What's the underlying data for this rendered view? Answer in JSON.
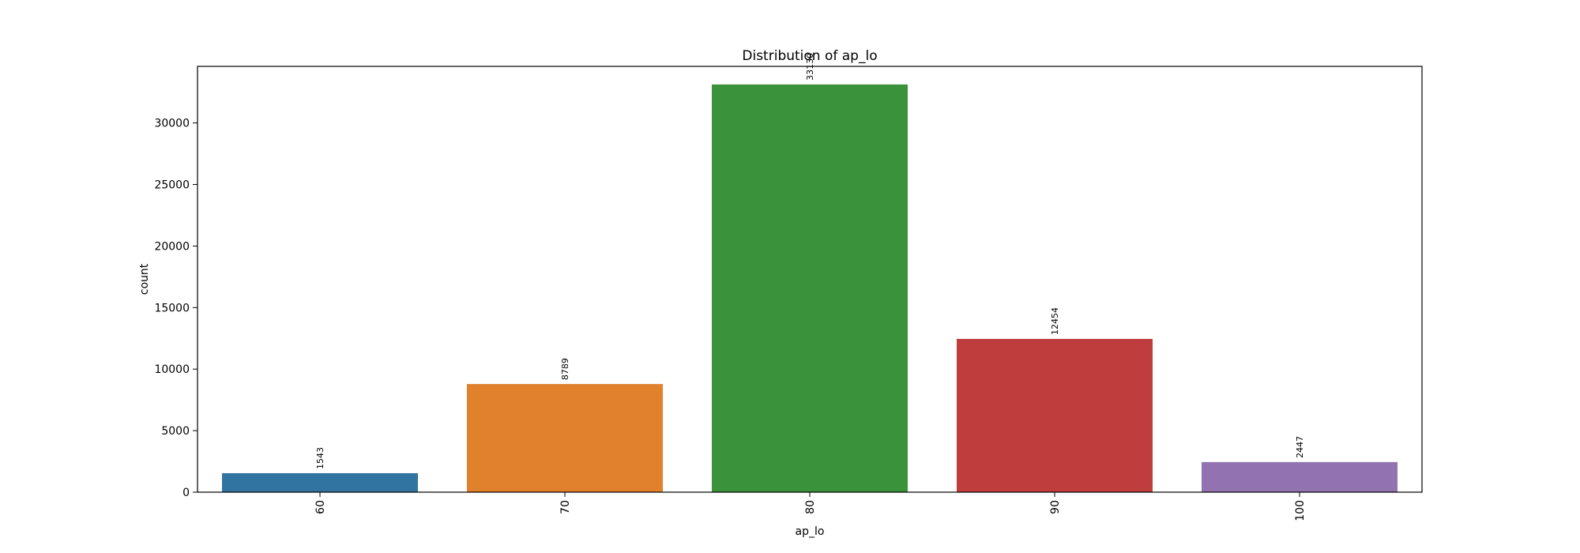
{
  "chart_data": {
    "type": "bar",
    "title": "Distribution of ap_lo",
    "xlabel": "ap_lo",
    "ylabel": "count",
    "categories": [
      "60",
      "70",
      "80",
      "90",
      "100"
    ],
    "values": [
      1543,
      8789,
      33130,
      12454,
      2447
    ],
    "value_labels": [
      "1543",
      "8789",
      "33130",
      "12454",
      "2447"
    ],
    "colors": [
      "#3274a1",
      "#e1812c",
      "#3a923a",
      "#c03d3e",
      "#9372b2"
    ],
    "ylim": [
      0,
      34600
    ],
    "yticks": [
      0,
      5000,
      10000,
      15000,
      20000,
      25000,
      30000
    ],
    "ytick_labels": [
      "0",
      "5000",
      "10000",
      "15000",
      "20000",
      "25000",
      "30000"
    ],
    "grid": false,
    "legend": "none",
    "x_tick_rotation": "vertical",
    "value_label_rotation": "vertical"
  }
}
